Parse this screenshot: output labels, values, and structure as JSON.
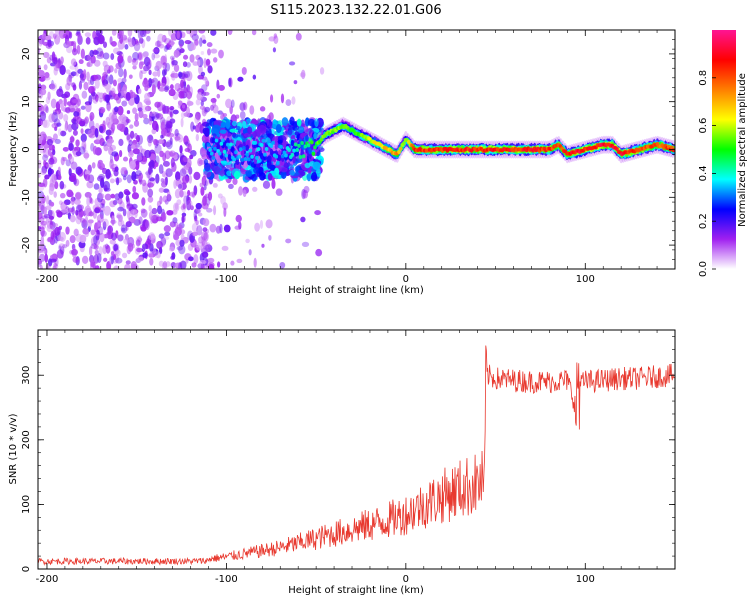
{
  "title": "S115.2023.132.22.01.G06",
  "chart_data": [
    {
      "type": "heatmap",
      "xlabel": "Height of straight line (km)",
      "ylabel": "Frequency (Hz)",
      "xlim": [
        -205,
        150
      ],
      "ylim": [
        -25,
        25
      ],
      "x_ticks": [
        -200,
        -100,
        0,
        100
      ],
      "y_ticks": [
        -20,
        -10,
        0,
        10,
        20
      ],
      "colorbar": {
        "label": "Normalized spectral amplitude",
        "range": [
          0,
          1
        ],
        "ticks": [
          0.0,
          0.2,
          0.4,
          0.6,
          0.8
        ],
        "tick_labels": [
          "0.0",
          "0.2",
          "0.4",
          "0.6",
          "0.8"
        ],
        "colors": [
          "#ffffff",
          "#a020f0",
          "#0000ff",
          "#00ffff",
          "#00ff00",
          "#ffff00",
          "#ff7f00",
          "#ff0000",
          "#ff1493"
        ]
      },
      "ridge": {
        "x": [
          -110,
          -100,
          -90,
          -80,
          -70,
          -60,
          -50,
          -45,
          -40,
          -35,
          -30,
          -25,
          -20,
          -15,
          -10,
          -5,
          0,
          5,
          10,
          20,
          30,
          40,
          50,
          60,
          70,
          80,
          85,
          90,
          100,
          110,
          115,
          120,
          130,
          140,
          150
        ],
        "freq": [
          0,
          0,
          -1,
          0,
          -1,
          0,
          1,
          3,
          4,
          5,
          4,
          3,
          2,
          1,
          0,
          -1,
          2,
          0,
          0,
          0,
          0,
          0,
          0,
          0,
          0,
          0,
          1,
          -1,
          0,
          1,
          1,
          -1,
          0,
          1,
          0
        ],
        "amplitude": [
          0.35,
          0.4,
          0.35,
          0.4,
          0.35,
          0.45,
          0.55,
          0.6,
          0.6,
          0.6,
          0.55,
          0.6,
          0.65,
          0.7,
          0.75,
          0.8,
          0.6,
          0.9,
          0.9,
          0.92,
          0.92,
          0.93,
          0.93,
          0.93,
          0.93,
          0.9,
          0.85,
          0.95,
          0.95,
          0.95,
          0.95,
          0.95,
          0.9,
          0.85,
          0.9
        ]
      }
    },
    {
      "type": "line",
      "xlabel": "Height of straight line (km)",
      "ylabel": "SNR (10 * v/v)",
      "xlim": [
        -205,
        150
      ],
      "ylim": [
        0,
        370
      ],
      "x_ticks": [
        -200,
        -100,
        0,
        100
      ],
      "y_ticks": [
        0,
        100,
        200,
        300
      ],
      "line_color": "#e8392f",
      "series": [
        {
          "x": [
            -205,
            -180,
            -160,
            -140,
            -120,
            -110,
            -100,
            -90,
            -80,
            -70,
            -60,
            -50,
            -40,
            -30,
            -20,
            -10,
            0,
            10,
            20,
            30,
            40,
            44,
            45,
            50,
            60,
            70,
            80,
            90,
            94,
            95,
            96,
            100,
            110,
            120,
            130,
            140,
            150
          ],
          "y": [
            12,
            12,
            12,
            12,
            12,
            13,
            16,
            20,
            24,
            28,
            34,
            40,
            46,
            52,
            58,
            64,
            72,
            84,
            95,
            105,
            112,
            115,
            300,
            295,
            292,
            290,
            290,
            292,
            260,
            240,
            285,
            290,
            292,
            295,
            295,
            298,
            300
          ]
        }
      ]
    }
  ]
}
